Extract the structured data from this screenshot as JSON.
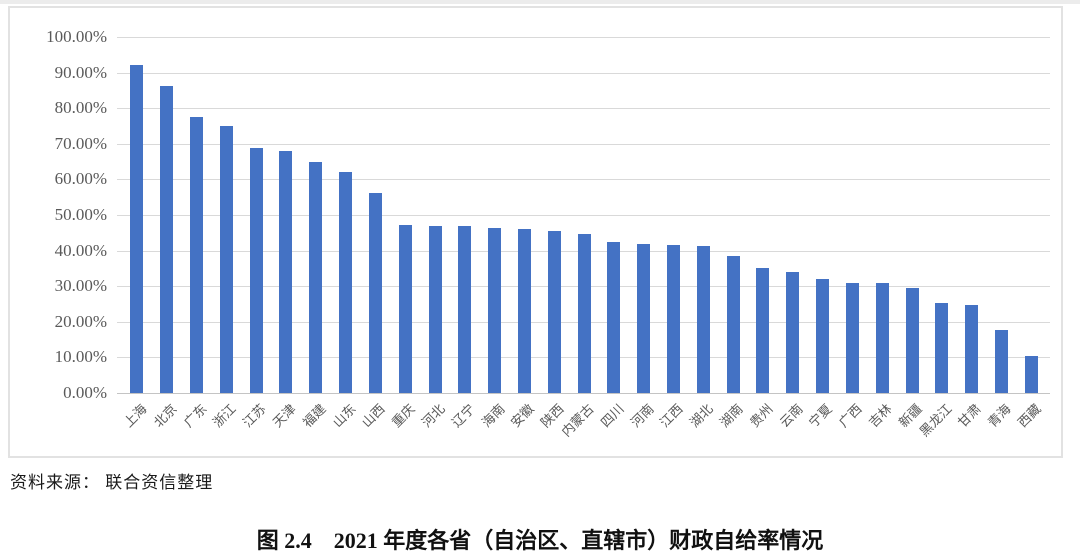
{
  "page": {
    "source_note": "资料来源： 联合资信整理",
    "caption_label": "图 2.4",
    "caption_title": "2021 年度各省（自治区、直辖市）财政自给率情况"
  },
  "chart_data": {
    "type": "bar",
    "title": "图 2.4 2021 年度各省（自治区、直辖市）财政自给率情况",
    "xlabel": "",
    "ylabel": "",
    "unit": "%",
    "ylim": [
      0,
      100
    ],
    "ytick_step": 10,
    "ytick_labels": [
      "0.00%",
      "10.00%",
      "20.00%",
      "30.00%",
      "40.00%",
      "50.00%",
      "60.00%",
      "70.00%",
      "80.00%",
      "90.00%",
      "100.00%"
    ],
    "grid": true,
    "legend": false,
    "bar_color": "#4472C4",
    "gridline_color": "#d9d9d9",
    "axis_label_color": "#595959",
    "categories": [
      "上海",
      "北京",
      "广东",
      "浙江",
      "江苏",
      "天津",
      "福建",
      "山东",
      "山西",
      "重庆",
      "河北",
      "辽宁",
      "海南",
      "安徽",
      "陕西",
      "内蒙古",
      "四川",
      "河南",
      "江西",
      "湖北",
      "湖南",
      "贵州",
      "云南",
      "宁夏",
      "广西",
      "吉林",
      "新疆",
      "黑龙江",
      "甘肃",
      "青海",
      "西藏"
    ],
    "values": [
      92.1,
      86.3,
      77.4,
      74.9,
      68.8,
      68.0,
      64.9,
      62.1,
      56.1,
      47.2,
      47.0,
      46.8,
      46.4,
      46.0,
      45.5,
      44.7,
      42.3,
      41.8,
      41.5,
      41.3,
      38.6,
      35.1,
      34.1,
      31.9,
      31.0,
      30.8,
      29.6,
      25.2,
      24.6,
      17.6,
      10.3
    ],
    "source": "资料来源： 联合资信整理"
  }
}
